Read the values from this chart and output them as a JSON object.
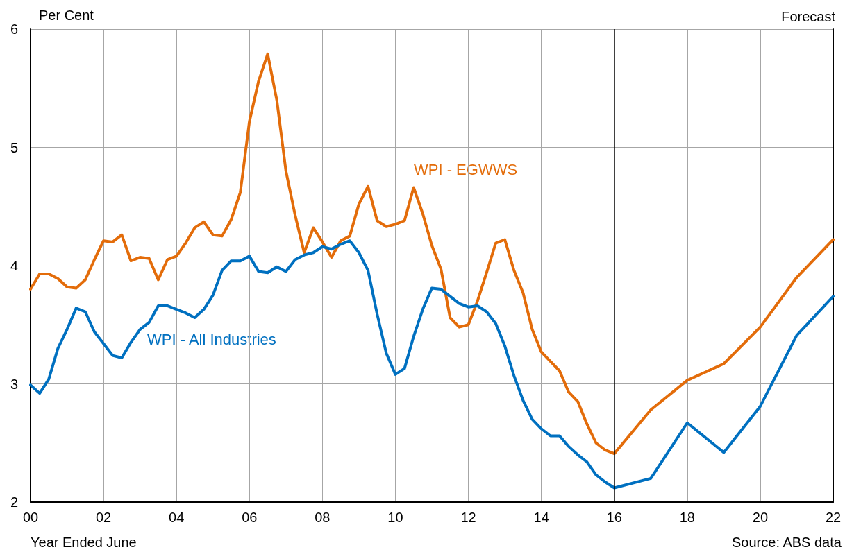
{
  "chart_data": {
    "type": "line",
    "ylabel": "Per Cent",
    "xlabel": "Year Ended June",
    "annotations": [
      "Forecast",
      "Source: ABS data"
    ],
    "x": [
      0,
      0.25,
      0.5,
      0.75,
      1,
      1.25,
      1.5,
      1.75,
      2,
      2.25,
      2.5,
      2.75,
      3,
      3.25,
      3.5,
      3.75,
      4,
      4.25,
      4.5,
      4.75,
      5,
      5.25,
      5.5,
      5.75,
      6,
      6.25,
      6.5,
      6.75,
      7,
      7.25,
      7.5,
      7.75,
      8,
      8.25,
      8.5,
      8.75,
      9,
      9.25,
      9.5,
      9.75,
      10,
      10.25,
      10.5,
      10.75,
      11,
      11.25,
      11.5,
      11.75,
      12,
      12.25,
      12.5,
      12.75,
      13,
      13.25,
      13.5,
      13.75,
      14,
      14.25,
      14.5,
      14.75,
      15,
      15.25,
      15.5,
      15.75,
      16,
      17,
      18,
      19,
      20,
      21,
      22
    ],
    "series": [
      {
        "name": "WPI - EGWWS",
        "color": "#e36c0a",
        "values": [
          3.8,
          3.93,
          3.93,
          3.89,
          3.82,
          3.81,
          3.88,
          4.05,
          4.21,
          4.2,
          4.26,
          4.04,
          4.07,
          4.06,
          3.88,
          4.05,
          4.08,
          4.19,
          4.32,
          4.37,
          4.26,
          4.25,
          4.39,
          4.62,
          5.22,
          5.56,
          5.79,
          5.4,
          4.8,
          4.43,
          4.11,
          4.32,
          4.2,
          4.07,
          4.21,
          4.25,
          4.52,
          4.67,
          4.38,
          4.33,
          4.35,
          4.38,
          4.66,
          4.44,
          4.17,
          3.97,
          3.56,
          3.48,
          3.5,
          3.7,
          3.94,
          4.19,
          4.22,
          3.96,
          3.77,
          3.46,
          3.27,
          3.19,
          3.11,
          2.93,
          2.85,
          2.66,
          2.5,
          2.44,
          2.41,
          2.78,
          3.03,
          3.17,
          3.48,
          3.9,
          4.22
        ]
      },
      {
        "name": "WPI - All Industries",
        "color": "#0070c0",
        "values": [
          2.99,
          2.92,
          3.04,
          3.3,
          3.46,
          3.64,
          3.61,
          3.44,
          3.34,
          3.24,
          3.22,
          3.35,
          3.46,
          3.52,
          3.66,
          3.66,
          3.63,
          3.6,
          3.56,
          3.63,
          3.75,
          3.96,
          4.04,
          4.04,
          4.08,
          3.95,
          3.94,
          3.99,
          3.95,
          4.05,
          4.09,
          4.11,
          4.16,
          4.14,
          4.18,
          4.21,
          4.11,
          3.96,
          3.59,
          3.26,
          3.08,
          3.13,
          3.4,
          3.63,
          3.81,
          3.8,
          3.74,
          3.68,
          3.65,
          3.66,
          3.61,
          3.51,
          3.32,
          3.07,
          2.86,
          2.7,
          2.62,
          2.56,
          2.56,
          2.47,
          2.4,
          2.34,
          2.23,
          2.17,
          2.12,
          2.2,
          2.67,
          2.42,
          2.81,
          3.41,
          3.74
        ]
      }
    ],
    "xlim": [
      0,
      22
    ],
    "xticks": [
      {
        "value": 0,
        "label": "00"
      },
      {
        "value": 2,
        "label": "02"
      },
      {
        "value": 4,
        "label": "04"
      },
      {
        "value": 6,
        "label": "06"
      },
      {
        "value": 8,
        "label": "08"
      },
      {
        "value": 10,
        "label": "10"
      },
      {
        "value": 12,
        "label": "12"
      },
      {
        "value": 14,
        "label": "14"
      },
      {
        "value": 16,
        "label": "16"
      },
      {
        "value": 18,
        "label": "18"
      },
      {
        "value": 20,
        "label": "20"
      },
      {
        "value": 22,
        "label": "22"
      }
    ],
    "ylim": [
      2,
      6
    ],
    "yticks": [
      2,
      3,
      4,
      5,
      6
    ],
    "ref_lines": [
      {
        "axis": "x",
        "value": 16,
        "color": "#000000"
      }
    ],
    "grid": true,
    "legend": false,
    "marker": "none",
    "line_style": "solid"
  }
}
